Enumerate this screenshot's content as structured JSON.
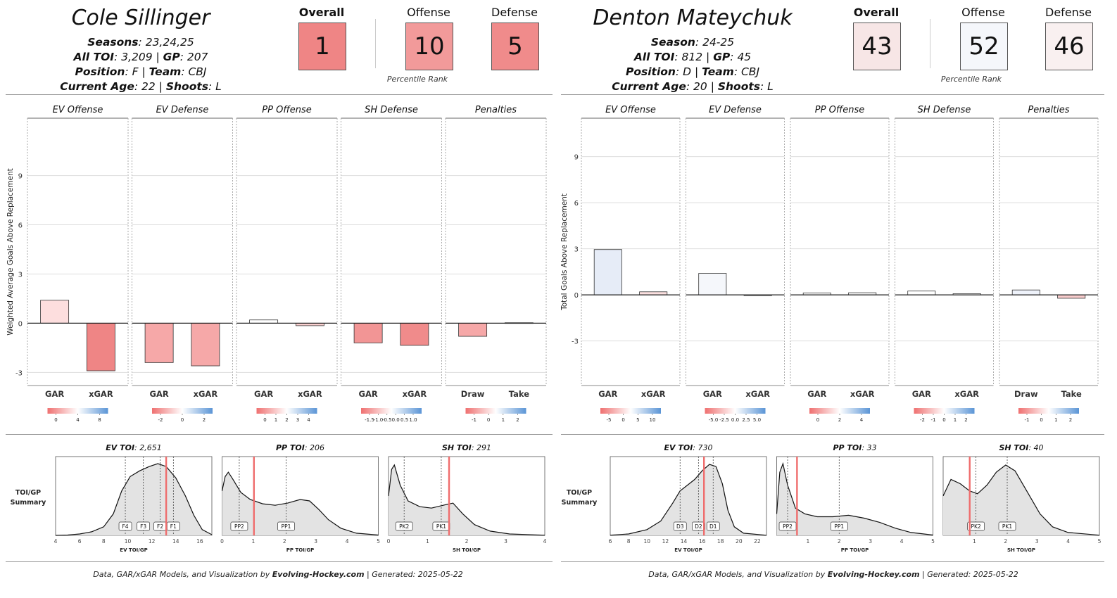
{
  "players": [
    {
      "name": "Cole Sillinger",
      "season_label": "Seasons",
      "season_value": "23,24,25",
      "toi_label": "All TOI",
      "toi_value": "3,209",
      "gp_label": "GP",
      "gp_value": "207",
      "position_label": "Position",
      "position_value": "F",
      "team_label": "Team",
      "team_value": "CBJ",
      "age_label": "Current Age",
      "age_value": "22",
      "shoots_label": "Shoots",
      "shoots_value": "L",
      "overall_label": "Overall",
      "overall_rank": "1",
      "overall_color": "#ef8585",
      "offense_label": "Offense",
      "offense_rank": "10",
      "offense_color": "#f29a9a",
      "defense_label": "Defense",
      "defense_rank": "5",
      "defense_color": "#f08b8b",
      "pct_label": "Percentile Rank",
      "footer_prefix": "Data, GAR/xGAR Models, and Visualization by ",
      "footer_brand": "Evolving-Hockey.com",
      "footer_suffix": " | Generated: 2025-05-22",
      "bar_chart": {
        "type": "bar",
        "ylabel": "Weighted Average Goals Above Replacement",
        "ylim": [
          -3.8,
          12.5
        ],
        "yticks": [
          -3,
          0,
          3,
          6,
          9
        ],
        "panels": [
          {
            "title": "EV Offense",
            "categories": [
              "GAR",
              "xGAR"
            ],
            "values": [
              1.4,
              -2.9
            ],
            "colors": [
              "#fddede",
              "#ef8585"
            ],
            "legend_ticks": [
              "0",
              "4",
              "8"
            ]
          },
          {
            "title": "EV Defense",
            "categories": [
              "GAR",
              "xGAR"
            ],
            "values": [
              -2.4,
              -2.6
            ],
            "colors": [
              "#f6a8a8",
              "#f6a8a8"
            ],
            "legend_ticks": [
              "-2",
              "0",
              "2"
            ]
          },
          {
            "title": "PP Offense",
            "categories": [
              "GAR",
              "xGAR"
            ],
            "values": [
              0.2,
              -0.15
            ],
            "colors": [
              "#ffffff",
              "#fbd0d0"
            ],
            "legend_ticks": [
              "0",
              "1",
              "2",
              "3",
              "4"
            ]
          },
          {
            "title": "SH Defense",
            "categories": [
              "GAR",
              "xGAR"
            ],
            "values": [
              -1.2,
              -1.35
            ],
            "colors": [
              "#f29595",
              "#f08b8b"
            ],
            "legend_ticks": [
              "-1.5",
              "-1.0",
              "-0.5",
              "0.0",
              "0.5",
              "1.0"
            ]
          },
          {
            "title": "Penalties",
            "categories": [
              "Draw",
              "Take"
            ],
            "values": [
              -0.8,
              0.03
            ],
            "colors": [
              "#f6a8a8",
              "#ffffff"
            ],
            "legend_ticks": [
              "-1",
              "0",
              "1",
              "2"
            ]
          }
        ]
      },
      "toi_summary": {
        "row_label_1": "TOI/GP",
        "row_label_2": "Summary",
        "charts": [
          {
            "title_label": "EV TOI",
            "title_value": "2,651",
            "xlabel": "EV TOI/GP",
            "xlim": [
              4,
              17
            ],
            "xticks": [
              4,
              6,
              8,
              10,
              12,
              14,
              16
            ],
            "xtick_labels": [
              "4",
              "6",
              "8",
              "10",
              "12",
              "14",
              "16"
            ],
            "markers": [
              {
                "label": "F4",
                "x": 9.8
              },
              {
                "label": "F3",
                "x": 11.3
              },
              {
                "label": "F2",
                "x": 12.7
              },
              {
                "label": "F1",
                "x": 13.8
              }
            ],
            "player_value": 13.2,
            "curve": [
              [
                4,
                0
              ],
              [
                5,
                0.005
              ],
              [
                6,
                0.02
              ],
              [
                7,
                0.05
              ],
              [
                8,
                0.12
              ],
              [
                8.8,
                0.3
              ],
              [
                9.5,
                0.62
              ],
              [
                10.2,
                0.82
              ],
              [
                11,
                0.9
              ],
              [
                11.8,
                0.96
              ],
              [
                12.5,
                1.0
              ],
              [
                13.2,
                0.96
              ],
              [
                14,
                0.8
              ],
              [
                14.8,
                0.55
              ],
              [
                15.5,
                0.28
              ],
              [
                16.2,
                0.08
              ],
              [
                17,
                0.01
              ]
            ]
          },
          {
            "title_label": "PP TOI",
            "title_value": "206",
            "xlabel": "PP TOI/GP",
            "xlim": [
              0,
              5
            ],
            "xticks": [
              0,
              1,
              2,
              3,
              4,
              5
            ],
            "xtick_labels": [
              "0",
              "1",
              "2",
              "3",
              "4",
              "5"
            ],
            "markers": [
              {
                "label": "PP2",
                "x": 0.55
              },
              {
                "label": "PP1",
                "x": 2.05
              }
            ],
            "player_value": 1.02,
            "curve": [
              [
                0,
                0.62
              ],
              [
                0.1,
                0.82
              ],
              [
                0.2,
                0.88
              ],
              [
                0.35,
                0.78
              ],
              [
                0.6,
                0.6
              ],
              [
                0.9,
                0.5
              ],
              [
                1.3,
                0.44
              ],
              [
                1.7,
                0.42
              ],
              [
                2.1,
                0.45
              ],
              [
                2.5,
                0.5
              ],
              [
                2.8,
                0.48
              ],
              [
                3.1,
                0.36
              ],
              [
                3.4,
                0.22
              ],
              [
                3.8,
                0.1
              ],
              [
                4.3,
                0.03
              ],
              [
                5,
                0.005
              ]
            ]
          },
          {
            "title_label": "SH TOI",
            "title_value": "291",
            "xlabel": "SH TOI/GP",
            "xlim": [
              0,
              4
            ],
            "xticks": [
              0,
              1,
              2,
              3,
              4
            ],
            "xtick_labels": [
              "0",
              "1",
              "2",
              "3",
              "4"
            ],
            "markers": [
              {
                "label": "PK2",
                "x": 0.4
              },
              {
                "label": "PK1",
                "x": 1.35
              }
            ],
            "player_value": 1.55,
            "curve": [
              [
                0,
                0.55
              ],
              [
                0.08,
                0.92
              ],
              [
                0.15,
                0.98
              ],
              [
                0.3,
                0.7
              ],
              [
                0.5,
                0.48
              ],
              [
                0.8,
                0.4
              ],
              [
                1.1,
                0.38
              ],
              [
                1.4,
                0.42
              ],
              [
                1.65,
                0.45
              ],
              [
                1.9,
                0.3
              ],
              [
                2.2,
                0.15
              ],
              [
                2.6,
                0.06
              ],
              [
                3.1,
                0.02
              ],
              [
                4,
                0.003
              ]
            ]
          }
        ]
      }
    },
    {
      "name": "Denton Mateychuk",
      "season_label": "Season",
      "season_value": "24-25",
      "toi_label": "All TOI",
      "toi_value": "812",
      "gp_label": "GP",
      "gp_value": "45",
      "position_label": "Position",
      "position_value": "D",
      "team_label": "Team",
      "team_value": "CBJ",
      "age_label": "Current Age",
      "age_value": "20",
      "shoots_label": "Shoots",
      "shoots_value": "L",
      "overall_label": "Overall",
      "overall_rank": "43",
      "overall_color": "#f7e6e6",
      "offense_label": "Offense",
      "offense_rank": "52",
      "offense_color": "#f5f7fb",
      "defense_label": "Defense",
      "defense_rank": "46",
      "defense_color": "#f9f0f0",
      "pct_label": "Percentile Rank",
      "footer_prefix": "Data, GAR/xGAR Models, and Visualization by ",
      "footer_brand": "Evolving-Hockey.com",
      "footer_suffix": " | Generated: 2025-05-22",
      "bar_chart": {
        "type": "bar",
        "ylabel": "Total Goals Above Replacement",
        "ylim": [
          -5.9,
          11.5
        ],
        "yticks": [
          -3,
          0,
          3,
          6,
          9
        ],
        "panels": [
          {
            "title": "EV Offense",
            "categories": [
              "GAR",
              "xGAR"
            ],
            "values": [
              2.95,
              0.2
            ],
            "colors": [
              "#e6ecf7",
              "#fbe0e0"
            ],
            "legend_ticks": [
              "-5",
              "0",
              "5",
              "10"
            ]
          },
          {
            "title": "EV Defense",
            "categories": [
              "GAR",
              "xGAR"
            ],
            "values": [
              1.4,
              -0.05
            ],
            "colors": [
              "#f5f7fb",
              "#ffffff"
            ],
            "legend_ticks": [
              "-5.0",
              "-2.5",
              "0.0",
              "2.5",
              "5.0"
            ]
          },
          {
            "title": "PP Offense",
            "categories": [
              "GAR",
              "xGAR"
            ],
            "values": [
              0.13,
              0.14
            ],
            "colors": [
              "#ffffff",
              "#ffffff"
            ],
            "legend_ticks": [
              "0",
              "2",
              "4"
            ]
          },
          {
            "title": "SH Defense",
            "categories": [
              "GAR",
              "xGAR"
            ],
            "values": [
              0.25,
              0.08
            ],
            "colors": [
              "#ffffff",
              "#ffffff"
            ],
            "legend_ticks": [
              "-2",
              "-1",
              "0",
              "1",
              "2"
            ]
          },
          {
            "title": "Penalties",
            "categories": [
              "Draw",
              "Take"
            ],
            "values": [
              0.32,
              -0.22
            ],
            "colors": [
              "#eef2fa",
              "#f8cccc"
            ],
            "legend_ticks": [
              "-1",
              "0",
              "1",
              "2"
            ]
          }
        ]
      },
      "toi_summary": {
        "row_label_1": "TOI/GP",
        "row_label_2": "Summary",
        "charts": [
          {
            "title_label": "EV TOI",
            "title_value": "730",
            "xlabel": "EV TOI/GP",
            "xlim": [
              6,
              23
            ],
            "xticks": [
              6,
              8,
              10,
              12,
              14,
              16,
              18,
              20,
              22
            ],
            "xtick_labels": [
              "6",
              "8",
              "10",
              "12",
              "14",
              "16",
              "18",
              "20",
              "22"
            ],
            "markers": [
              {
                "label": "D3",
                "x": 13.6
              },
              {
                "label": "D2",
                "x": 15.6
              },
              {
                "label": "D1",
                "x": 17.2
              }
            ],
            "player_value": 16.2,
            "curve": [
              [
                6,
                0.003
              ],
              [
                8,
                0.02
              ],
              [
                10,
                0.08
              ],
              [
                11.5,
                0.2
              ],
              [
                12.8,
                0.45
              ],
              [
                13.6,
                0.62
              ],
              [
                14.4,
                0.7
              ],
              [
                15.2,
                0.78
              ],
              [
                16,
                0.9
              ],
              [
                16.8,
                0.99
              ],
              [
                17.5,
                0.96
              ],
              [
                18.2,
                0.72
              ],
              [
                18.8,
                0.35
              ],
              [
                19.5,
                0.12
              ],
              [
                20.5,
                0.03
              ],
              [
                23,
                0.002
              ]
            ]
          },
          {
            "title_label": "PP TOI",
            "title_value": "33",
            "xlabel": "PP TOI/GP",
            "xlim": [
              0,
              5
            ],
            "xticks": [
              1,
              2,
              3,
              4,
              5
            ],
            "xtick_labels": [
              "1",
              "2",
              "3",
              "4",
              "5"
            ],
            "markers": [
              {
                "label": "PP2",
                "x": 0.35
              },
              {
                "label": "PP1",
                "x": 2.0
              }
            ],
            "player_value": 0.65,
            "curve": [
              [
                0,
                0.3
              ],
              [
                0.1,
                0.88
              ],
              [
                0.2,
                1.0
              ],
              [
                0.35,
                0.7
              ],
              [
                0.6,
                0.38
              ],
              [
                0.9,
                0.3
              ],
              [
                1.3,
                0.26
              ],
              [
                1.8,
                0.26
              ],
              [
                2.3,
                0.28
              ],
              [
                2.8,
                0.24
              ],
              [
                3.3,
                0.18
              ],
              [
                3.8,
                0.1
              ],
              [
                4.3,
                0.04
              ],
              [
                5,
                0.005
              ]
            ]
          },
          {
            "title_label": "SH TOI",
            "title_value": "40",
            "xlabel": "SH TOI/GP",
            "xlim": [
              0,
              5
            ],
            "xticks": [
              1,
              2,
              3,
              4,
              5
            ],
            "xtick_labels": [
              "1",
              "2",
              "3",
              "4",
              "5"
            ],
            "markers": [
              {
                "label": "PK2",
                "x": 1.05
              },
              {
                "label": "PK1",
                "x": 2.05
              }
            ],
            "player_value": 0.85,
            "curve": [
              [
                0,
                0.55
              ],
              [
                0.25,
                0.78
              ],
              [
                0.55,
                0.72
              ],
              [
                0.85,
                0.62
              ],
              [
                1.1,
                0.58
              ],
              [
                1.4,
                0.7
              ],
              [
                1.7,
                0.88
              ],
              [
                2.0,
                0.98
              ],
              [
                2.3,
                0.9
              ],
              [
                2.7,
                0.6
              ],
              [
                3.1,
                0.3
              ],
              [
                3.5,
                0.12
              ],
              [
                4,
                0.04
              ],
              [
                5,
                0.003
              ]
            ]
          }
        ]
      }
    }
  ]
}
